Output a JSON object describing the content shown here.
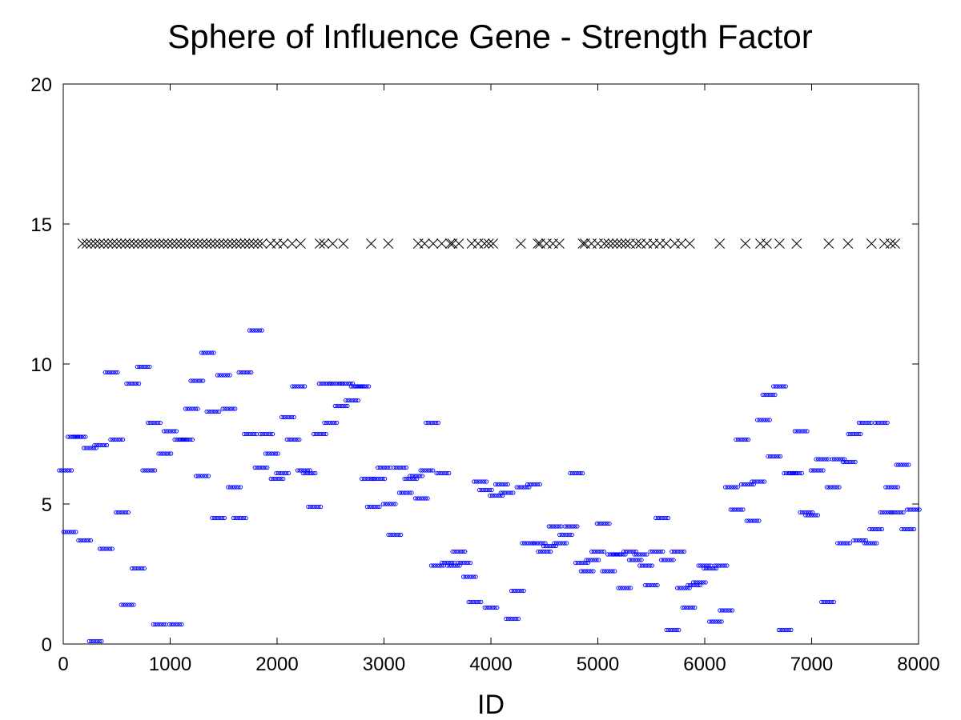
{
  "chart_data": {
    "type": "scatter",
    "title": "Sphere of Influence Gene - Strength Factor",
    "xlabel": "ID",
    "ylabel": "",
    "xlim": [
      0,
      8000
    ],
    "ylim": [
      0,
      20
    ],
    "xticks": [
      "0",
      "1000",
      "2000",
      "3000",
      "4000",
      "5000",
      "6000",
      "7000",
      "8000"
    ],
    "yticks": [
      "0",
      "5",
      "10",
      "15",
      "20"
    ],
    "grid": false,
    "legend": "none",
    "series": [
      {
        "marker": "circle",
        "color": "#0000ff",
        "description_points": "approximate centers of horizontal clusters; actual plot has several thousand points",
        "x": [
          20,
          60,
          100,
          150,
          200,
          250,
          300,
          350,
          400,
          450,
          500,
          550,
          600,
          650,
          700,
          750,
          800,
          850,
          900,
          950,
          1000,
          1050,
          1100,
          1150,
          1200,
          1250,
          1300,
          1350,
          1400,
          1450,
          1500,
          1550,
          1600,
          1650,
          1700,
          1750,
          1800,
          1850,
          1900,
          1950,
          2000,
          2050,
          2100,
          2150,
          2200,
          2250,
          2300,
          2350,
          2400,
          2450,
          2500,
          2550,
          2600,
          2650,
          2700,
          2750,
          2800,
          2850,
          2900,
          2950,
          3000,
          3050,
          3100,
          3150,
          3200,
          3250,
          3300,
          3350,
          3400,
          3450,
          3500,
          3550,
          3600,
          3650,
          3700,
          3750,
          3800,
          3850,
          3900,
          3950,
          4000,
          4050,
          4100,
          4150,
          4200,
          4250,
          4300,
          4350,
          4400,
          4450,
          4500,
          4550,
          4600,
          4650,
          4700,
          4750,
          4800,
          4850,
          4900,
          4950,
          5000,
          5050,
          5100,
          5150,
          5200,
          5250,
          5300,
          5350,
          5400,
          5450,
          5500,
          5550,
          5600,
          5650,
          5700,
          5750,
          5800,
          5850,
          5900,
          5950,
          6000,
          6050,
          6100,
          6150,
          6200,
          6250,
          6300,
          6350,
          6400,
          6450,
          6500,
          6550,
          6600,
          6650,
          6700,
          6750,
          6800,
          6850,
          6900,
          6950,
          7000,
          7050,
          7100,
          7150,
          7200,
          7250,
          7300,
          7350,
          7400,
          7450,
          7500,
          7550,
          7600,
          7650,
          7700,
          7750,
          7800,
          7850,
          7900,
          7950
        ],
        "y": [
          6.2,
          4.0,
          7.4,
          7.4,
          3.7,
          7.0,
          0.1,
          7.1,
          3.4,
          9.7,
          7.3,
          4.7,
          1.4,
          9.3,
          2.7,
          9.9,
          6.2,
          7.9,
          0.7,
          6.8,
          7.6,
          0.7,
          7.3,
          7.3,
          8.4,
          9.4,
          6.0,
          10.4,
          8.3,
          4.5,
          9.6,
          8.4,
          5.6,
          4.5,
          9.7,
          7.5,
          11.2,
          6.3,
          7.5,
          6.8,
          5.9,
          6.1,
          8.1,
          7.3,
          9.2,
          6.2,
          6.1,
          4.9,
          7.5,
          9.3,
          7.9,
          9.3,
          8.5,
          9.3,
          8.7,
          9.2,
          9.2,
          5.9,
          4.9,
          5.9,
          6.3,
          5.0,
          3.9,
          6.3,
          5.4,
          5.9,
          6.0,
          5.2,
          6.2,
          7.9,
          2.8,
          6.1,
          2.9,
          2.8,
          3.3,
          2.9,
          2.4,
          1.5,
          5.8,
          5.5,
          1.3,
          5.3,
          5.7,
          5.4,
          0.9,
          1.9,
          5.6,
          3.6,
          5.7,
          3.6,
          3.3,
          3.5,
          4.2,
          3.6,
          3.9,
          4.2,
          6.1,
          2.9,
          2.6,
          3.0,
          3.3,
          4.3,
          2.6,
          3.2,
          3.2,
          2.0,
          3.3,
          3.0,
          3.2,
          2.8,
          2.1,
          3.3,
          4.5,
          3.0,
          0.5,
          3.3,
          2.0,
          1.3,
          2.1,
          2.2,
          2.8,
          2.7,
          0.8,
          2.8,
          1.2,
          5.6,
          4.8,
          7.3,
          5.7,
          4.4,
          5.8,
          8.0,
          8.9,
          6.7,
          9.2,
          0.5,
          6.1,
          6.1,
          7.6,
          4.7,
          4.6,
          6.2,
          6.6,
          1.5,
          5.6,
          6.6,
          3.6,
          6.5,
          7.5,
          3.7,
          7.9,
          3.6,
          4.1,
          7.9,
          4.7,
          5.6,
          4.7,
          6.4,
          4.1,
          4.8
        ]
      },
      {
        "marker": "x",
        "color": "#000000",
        "x": [
          180,
          220,
          260,
          300,
          340,
          380,
          420,
          460,
          500,
          540,
          580,
          620,
          660,
          700,
          740,
          780,
          820,
          860,
          900,
          940,
          980,
          1020,
          1060,
          1100,
          1140,
          1180,
          1220,
          1260,
          1300,
          1340,
          1380,
          1420,
          1460,
          1500,
          1540,
          1580,
          1620,
          1660,
          1700,
          1740,
          1780,
          1820,
          1860,
          1940,
          2000,
          2060,
          2140,
          2220,
          2400,
          2440,
          2520,
          2620,
          2880,
          3040,
          3320,
          3380,
          3460,
          3540,
          3620,
          3640,
          3700,
          3820,
          3880,
          3940,
          3980,
          4020,
          4280,
          4440,
          4460,
          4520,
          4580,
          4640,
          4860,
          4880,
          4940,
          5000,
          5060,
          5100,
          5140,
          5180,
          5220,
          5260,
          5300,
          5360,
          5400,
          5460,
          5520,
          5580,
          5640,
          5720,
          5780,
          5860,
          6140,
          6380,
          6520,
          6580,
          6700,
          6860,
          7160,
          7340,
          7560,
          7680,
          7740,
          7780
        ],
        "y": [
          14.3,
          14.3,
          14.3,
          14.3,
          14.3,
          14.3,
          14.3,
          14.3,
          14.3,
          14.3,
          14.3,
          14.3,
          14.3,
          14.3,
          14.3,
          14.3,
          14.3,
          14.3,
          14.3,
          14.3,
          14.3,
          14.3,
          14.3,
          14.3,
          14.3,
          14.3,
          14.3,
          14.3,
          14.3,
          14.3,
          14.3,
          14.3,
          14.3,
          14.3,
          14.3,
          14.3,
          14.3,
          14.3,
          14.3,
          14.3,
          14.3,
          14.3,
          14.3,
          14.3,
          14.3,
          14.3,
          14.3,
          14.3,
          14.3,
          14.3,
          14.3,
          14.3,
          14.3,
          14.3,
          14.3,
          14.3,
          14.3,
          14.3,
          14.3,
          14.3,
          14.3,
          14.3,
          14.3,
          14.3,
          14.3,
          14.3,
          14.3,
          14.3,
          14.3,
          14.3,
          14.3,
          14.3,
          14.3,
          14.3,
          14.3,
          14.3,
          14.3,
          14.3,
          14.3,
          14.3,
          14.3,
          14.3,
          14.3,
          14.3,
          14.3,
          14.3,
          14.3,
          14.3,
          14.3,
          14.3,
          14.3,
          14.3,
          14.3,
          14.3,
          14.3,
          14.3,
          14.3,
          14.3,
          14.3,
          14.3,
          14.3,
          14.3,
          14.3,
          14.3
        ]
      }
    ]
  }
}
